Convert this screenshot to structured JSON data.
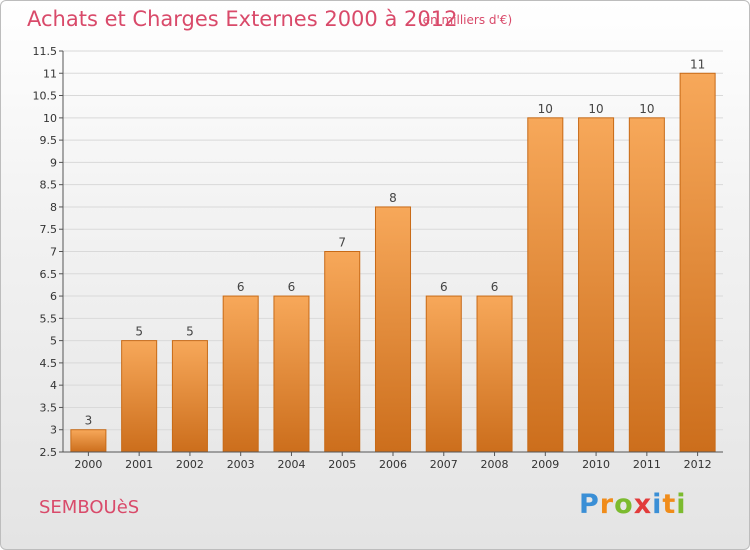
{
  "header": {
    "title": "Achats et Charges Externes 2000 à 2012",
    "subtitle": "(en milliers d'€)"
  },
  "footer": {
    "commune": "SEMBOUèS",
    "brand_letters": [
      {
        "char": "P",
        "color": "#3a8fd6"
      },
      {
        "char": "r",
        "color": "#f08c1a"
      },
      {
        "char": "o",
        "color": "#7cbb2f"
      },
      {
        "char": "x",
        "color": "#e23b3b"
      },
      {
        "char": "i",
        "color": "#3a8fd6"
      },
      {
        "char": "t",
        "color": "#f08c1a"
      },
      {
        "char": "i",
        "color": "#7cbb2f"
      }
    ]
  },
  "chart_data": {
    "type": "bar",
    "title": "Achats et Charges Externes 2000 à 2012",
    "subtitle": "(en milliers d'€)",
    "categories": [
      "2000",
      "2001",
      "2002",
      "2003",
      "2004",
      "2005",
      "2006",
      "2007",
      "2008",
      "2009",
      "2010",
      "2011",
      "2012"
    ],
    "values": [
      3,
      5,
      5,
      6,
      6,
      7,
      8,
      6,
      6,
      10,
      10,
      10,
      11
    ],
    "value_labels": [
      "3",
      "5",
      "5",
      "6",
      "6",
      "7",
      "8",
      "6",
      "6",
      "10",
      "10",
      "10",
      "11"
    ],
    "ylim": [
      2.5,
      11.5
    ],
    "yticks": [
      2.5,
      3,
      3.5,
      4,
      4.5,
      5,
      5.5,
      6,
      6.5,
      7,
      7.5,
      8,
      8.5,
      9,
      9.5,
      10,
      10.5,
      11,
      11.5
    ],
    "ytick_labels": [
      "2.5",
      "3",
      "3.5",
      "4",
      "4.5",
      "5",
      "5.5",
      "6",
      "6.5",
      "7",
      "7.5",
      "8",
      "8.5",
      "9",
      "9.5",
      "10",
      "10.5",
      "11",
      "11.5"
    ],
    "grid": true,
    "xlabel": "",
    "ylabel": "",
    "bar_color_top": "#f7a85a",
    "bar_color_bottom": "#cc6e1c",
    "bar_edge_color": "#c76a17"
  }
}
